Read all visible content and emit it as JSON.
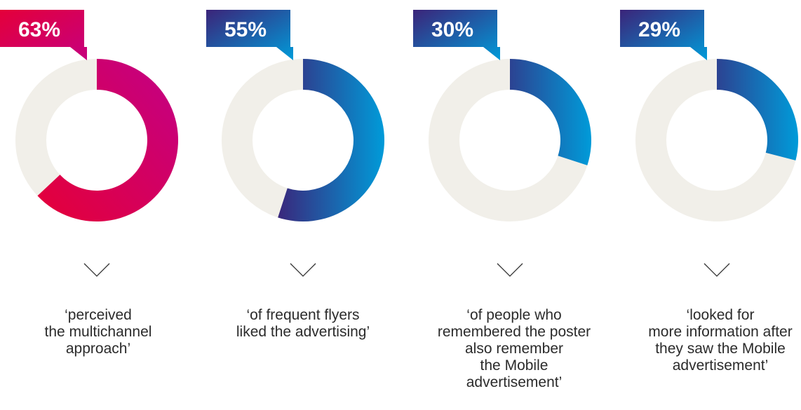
{
  "chart_data": [
    {
      "type": "pie",
      "values": [
        63,
        37
      ],
      "value_label": "63%",
      "caption": "‘perceived\nthe multichannel\napproach’",
      "colors": {
        "start": "#e4003a",
        "end": "#c6007e",
        "track": "#f1efe9"
      }
    },
    {
      "type": "pie",
      "values": [
        55,
        45
      ],
      "value_label": "55%",
      "caption": "‘of frequent flyers\nliked the advertising’",
      "colors": {
        "start": "#3b2479",
        "end": "#009bd9",
        "track": "#f1efe9"
      }
    },
    {
      "type": "pie",
      "values": [
        30,
        70
      ],
      "value_label": "30%",
      "caption": "‘of people who\nremembered the poster\nalso remember\nthe Mobile\nadvertisement’",
      "colors": {
        "start": "#3b2479",
        "end": "#009bd9",
        "track": "#f1efe9"
      }
    },
    {
      "type": "pie",
      "values": [
        29,
        71
      ],
      "value_label": "29%",
      "caption": "‘looked for\nmore information after\nthey saw the Mobile\nadvertisement’",
      "colors": {
        "start": "#3b2479",
        "end": "#009bd9",
        "track": "#f1efe9"
      }
    }
  ],
  "icons": {
    "separator": "chevron-down-icon"
  },
  "colors": {
    "caption_text": "#2b2b2b",
    "chevron": "#333333",
    "badge_text": "#ffffff"
  }
}
